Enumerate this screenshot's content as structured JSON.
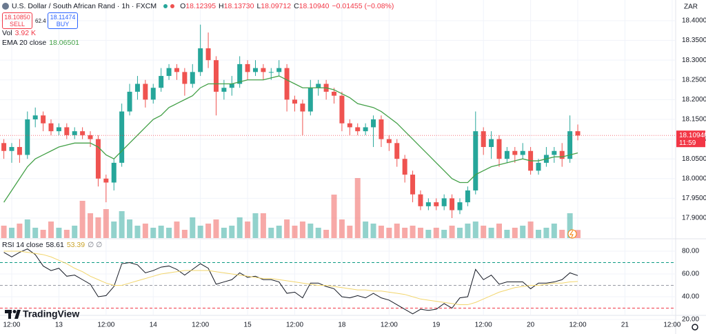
{
  "header": {
    "symbol": "U.S. Dollar / South African Rand · 1h · FXCM",
    "ohlc": [
      {
        "label": "O",
        "value": "18.12395"
      },
      {
        "label": "H",
        "value": "18.13730"
      },
      {
        "label": "L",
        "value": "18.09712"
      },
      {
        "label": "C",
        "value": "18.10940"
      }
    ],
    "change": "−0.01455 (−0.08%)",
    "sell": {
      "price": "18.10850",
      "label": "SELL"
    },
    "spread": "62.4",
    "buy": {
      "price": "18.11474",
      "label": "BUY"
    },
    "currency": "ZAR",
    "brand": "TradingView"
  },
  "chart_data": [
    {
      "type": "candlestick",
      "x": [
        -2,
        0,
        2,
        4,
        6,
        8,
        10,
        12,
        14,
        16,
        18,
        20,
        22,
        24,
        26,
        28,
        30,
        32,
        34,
        36,
        38,
        40,
        42,
        44,
        46,
        48,
        50,
        52,
        54,
        56,
        58,
        60,
        62,
        64,
        66,
        68,
        70,
        72,
        74,
        76,
        78,
        80,
        82,
        84,
        86,
        88,
        90,
        92,
        94,
        96,
        98,
        100,
        102,
        104,
        106,
        108,
        110,
        112,
        114,
        116,
        118,
        120,
        122,
        124,
        126,
        128,
        130,
        132,
        134,
        136,
        138,
        140,
        142,
        144
      ],
      "open": [
        18.09,
        18.07,
        18.08,
        18.06,
        18.15,
        18.16,
        18.14,
        18.12,
        18.13,
        18.11,
        18.12,
        18.11,
        18.1,
        18.0,
        17.99,
        18.04,
        18.17,
        18.22,
        18.24,
        18.2,
        18.23,
        18.26,
        18.28,
        18.27,
        18.24,
        18.27,
        18.33,
        18.3,
        18.22,
        18.23,
        18.24,
        18.29,
        18.27,
        18.28,
        18.27,
        18.27,
        18.28,
        18.2,
        18.19,
        18.17,
        18.23,
        18.24,
        18.22,
        18.21,
        18.14,
        18.13,
        18.12,
        18.13,
        18.15,
        18.1,
        18.09,
        18.05,
        18.01,
        17.96,
        17.93,
        17.94,
        17.93,
        17.95,
        17.92,
        17.94,
        17.97,
        18.12,
        18.08,
        18.1,
        18.05,
        18.07,
        18.06,
        18.07,
        18.02,
        18.04,
        18.06,
        18.07,
        18.05,
        18.12
      ],
      "high": [
        18.1,
        18.09,
        18.1,
        18.17,
        18.18,
        18.17,
        18.15,
        18.14,
        18.14,
        18.13,
        18.13,
        18.12,
        18.11,
        18.01,
        18.05,
        18.19,
        18.24,
        18.26,
        18.25,
        18.24,
        18.28,
        18.29,
        18.29,
        18.28,
        18.29,
        18.39,
        18.37,
        18.31,
        18.25,
        18.26,
        18.31,
        18.3,
        18.3,
        18.29,
        18.28,
        18.3,
        18.29,
        18.21,
        18.2,
        18.25,
        18.25,
        18.25,
        18.23,
        18.22,
        18.15,
        18.14,
        18.14,
        18.16,
        18.16,
        18.11,
        18.1,
        18.06,
        18.02,
        17.97,
        17.95,
        17.95,
        17.96,
        17.96,
        17.95,
        17.98,
        18.17,
        18.13,
        18.12,
        18.11,
        18.08,
        18.08,
        18.09,
        18.08,
        18.05,
        18.08,
        18.08,
        18.09,
        18.16,
        18.137
      ],
      "low": [
        18.05,
        18.04,
        18.04,
        18.05,
        18.13,
        18.12,
        18.11,
        18.11,
        18.1,
        18.1,
        18.1,
        18.08,
        17.98,
        17.94,
        17.97,
        18.03,
        18.16,
        18.2,
        18.18,
        18.19,
        18.22,
        18.25,
        18.25,
        18.21,
        18.23,
        18.26,
        18.28,
        18.16,
        18.2,
        18.21,
        18.23,
        18.25,
        18.26,
        18.25,
        18.25,
        18.26,
        18.17,
        18.17,
        18.11,
        18.16,
        18.21,
        18.2,
        18.19,
        18.12,
        18.11,
        18.11,
        18.11,
        18.08,
        18.08,
        18.07,
        18.03,
        17.99,
        17.94,
        17.92,
        17.92,
        17.92,
        17.92,
        17.9,
        17.91,
        17.93,
        17.96,
        18.06,
        18.05,
        18.03,
        18.04,
        18.04,
        18.05,
        18.01,
        18.01,
        18.03,
        18.04,
        18.03,
        18.04,
        18.097
      ],
      "close": [
        18.07,
        18.08,
        18.06,
        18.15,
        18.16,
        18.14,
        18.12,
        18.13,
        18.11,
        18.12,
        18.11,
        18.1,
        18.0,
        17.99,
        18.04,
        18.17,
        18.22,
        18.24,
        18.2,
        18.23,
        18.26,
        18.28,
        18.27,
        18.24,
        18.27,
        18.33,
        18.3,
        18.22,
        18.23,
        18.24,
        18.29,
        18.27,
        18.28,
        18.27,
        18.27,
        18.28,
        18.2,
        18.19,
        18.17,
        18.23,
        18.24,
        18.22,
        18.21,
        18.14,
        18.13,
        18.12,
        18.13,
        18.15,
        18.1,
        18.09,
        18.05,
        18.01,
        17.96,
        17.93,
        17.94,
        17.93,
        17.95,
        17.92,
        17.94,
        17.97,
        18.12,
        18.08,
        18.1,
        18.05,
        18.07,
        18.06,
        18.07,
        18.02,
        18.04,
        18.06,
        18.07,
        18.05,
        18.12,
        18.109
      ],
      "up_color": "#26a69a",
      "down_color": "#ef5350",
      "xlim": [
        -2.98,
        168.9
      ],
      "xticks": [
        {
          "value": 0,
          "label": "12:00"
        },
        {
          "value": 12,
          "label": "13"
        },
        {
          "value": 24,
          "label": "12:00"
        },
        {
          "value": 36,
          "label": "14"
        },
        {
          "value": 48,
          "label": "12:00"
        },
        {
          "value": 60,
          "label": "15"
        },
        {
          "value": 72,
          "label": "12:00"
        },
        {
          "value": 84,
          "label": "18"
        },
        {
          "value": 96,
          "label": "12:00"
        },
        {
          "value": 108,
          "label": "19"
        },
        {
          "value": 120,
          "label": "12:00"
        },
        {
          "value": 132,
          "label": "20"
        },
        {
          "value": 144,
          "label": "12:00"
        },
        {
          "value": 156,
          "label": "21"
        },
        {
          "value": 168,
          "label": "12:00"
        }
      ],
      "ylim": [
        17.8493,
        18.4524
      ],
      "yticks": [
        {
          "value": 18.4,
          "label": "18.40000"
        },
        {
          "value": 18.35,
          "label": "18.35000"
        },
        {
          "value": 18.3,
          "label": "18.30000"
        },
        {
          "value": 18.25,
          "label": "18.25000"
        },
        {
          "value": 18.2,
          "label": "18.20000"
        },
        {
          "value": 18.15,
          "label": "18.15000"
        },
        {
          "value": 18.1,
          "label": "18.10000"
        },
        {
          "value": 18.05,
          "label": "18.05000"
        },
        {
          "value": 18.0,
          "label": "18.00000"
        },
        {
          "value": 17.95,
          "label": "17.95000"
        },
        {
          "value": 17.9,
          "label": "17.90000"
        }
      ],
      "grid": true,
      "overlays": [
        {
          "name": "EMA 20 close",
          "color": "#43a047",
          "value_label": "18.06501",
          "values": [
            17.94,
            17.97,
            18.0,
            18.03,
            18.05,
            18.06,
            18.07,
            18.08,
            18.085,
            18.09,
            18.09,
            18.09,
            18.08,
            18.06,
            18.05,
            18.07,
            18.09,
            18.11,
            18.13,
            18.15,
            18.16,
            18.18,
            18.19,
            18.2,
            18.21,
            18.23,
            18.24,
            18.24,
            18.24,
            18.24,
            18.245,
            18.25,
            18.25,
            18.25,
            18.255,
            18.26,
            18.25,
            18.24,
            18.23,
            18.23,
            18.23,
            18.23,
            18.225,
            18.215,
            18.205,
            18.19,
            18.185,
            18.18,
            18.17,
            18.155,
            18.14,
            18.12,
            18.1,
            18.08,
            18.06,
            18.04,
            18.02,
            18.0,
            17.99,
            17.99,
            18.01,
            18.02,
            18.03,
            18.035,
            18.04,
            18.045,
            18.05,
            18.045,
            18.045,
            18.05,
            18.055,
            18.055,
            18.06,
            18.065
          ]
        }
      ],
      "last_price": {
        "value": 18.1094,
        "label": "18.10940",
        "countdown": "11:59",
        "color": "#f23645"
      }
    },
    {
      "type": "bar",
      "name": "Vol",
      "value_label": "3.92 K",
      "ylim": [
        0,
        40
      ],
      "values": [
        6,
        5,
        7,
        9,
        5,
        4,
        8,
        5,
        4,
        6,
        18,
        12,
        10,
        14,
        8,
        13,
        9,
        6,
        7,
        5,
        6,
        5,
        8,
        4,
        10,
        6,
        7,
        9,
        5,
        6,
        10,
        8,
        12,
        12,
        5,
        6,
        9,
        6,
        8,
        7,
        5,
        4,
        21,
        9,
        6,
        29,
        8,
        7,
        6,
        5,
        7,
        5,
        6,
        5,
        4,
        5,
        4,
        6,
        5,
        7,
        8,
        6,
        5,
        7,
        4,
        5,
        6,
        8,
        4,
        5,
        7,
        4,
        12,
        3.92
      ]
    },
    {
      "type": "line",
      "title": "RSI 14 close",
      "extra_label": "∅ ∅",
      "ylim": [
        24.24,
        90.3
      ],
      "yticks": [
        {
          "value": 80,
          "label": "80.00"
        },
        {
          "value": 60,
          "label": "60.00"
        },
        {
          "value": 40,
          "label": "40.00"
        },
        {
          "value": 20,
          "label": "20.00"
        }
      ],
      "bands": [
        70,
        50,
        30
      ],
      "band_colors": [
        "#089981",
        "#9598a1",
        "#f23645"
      ],
      "series": [
        {
          "color": "#131722",
          "value_label": "58.61",
          "values": [
            79,
            75,
            79,
            82,
            77,
            67,
            63,
            65,
            58,
            59,
            55,
            51,
            40,
            41,
            49,
            69,
            70,
            68,
            61,
            63,
            66,
            67,
            64,
            59,
            64,
            69,
            65,
            51,
            53,
            55,
            61,
            57,
            58,
            55,
            55,
            53,
            43,
            44,
            39,
            52,
            52,
            49,
            47,
            40,
            39,
            41,
            39,
            43,
            39,
            37,
            33,
            29,
            25,
            29,
            28,
            29,
            34,
            30,
            39,
            40,
            64,
            55,
            59,
            51,
            53,
            53,
            53,
            47,
            52,
            52,
            53,
            55,
            61,
            58.61
          ]
        },
        {
          "color": "#f2d56b",
          "value_label": "53.39",
          "values": [
            80,
            80,
            80,
            79,
            78,
            77,
            75,
            72,
            69,
            65,
            62,
            58,
            55,
            52,
            50,
            50,
            52,
            54,
            56,
            58,
            60,
            61,
            62,
            63,
            63,
            63,
            63,
            62,
            61,
            60,
            59,
            58,
            57,
            56,
            56,
            55,
            54,
            53,
            52,
            51,
            50,
            50,
            49,
            48,
            47,
            46,
            46,
            45,
            45,
            44,
            43,
            42,
            40,
            38,
            37,
            36,
            35,
            34,
            33,
            33,
            35,
            38,
            41,
            44,
            46,
            48,
            49,
            50,
            50,
            51,
            52,
            52,
            53,
            53.39
          ]
        }
      ]
    }
  ]
}
